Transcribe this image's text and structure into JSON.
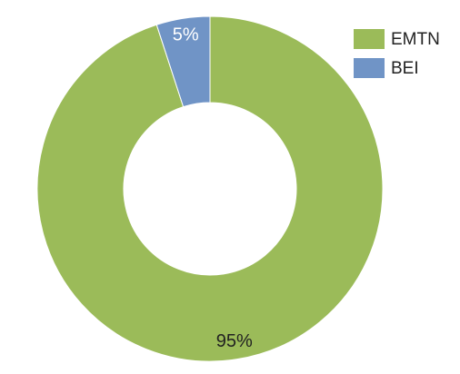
{
  "chart_data": {
    "type": "donut",
    "categories": [
      "EMTN",
      "BEI"
    ],
    "values": [
      95,
      5
    ],
    "value_labels": [
      "95%",
      "5%"
    ],
    "colors": [
      "#9bbb59",
      "#7094c6"
    ],
    "value_label_colors": [
      "#222222",
      "#ffffff"
    ],
    "legend": "top-right"
  }
}
